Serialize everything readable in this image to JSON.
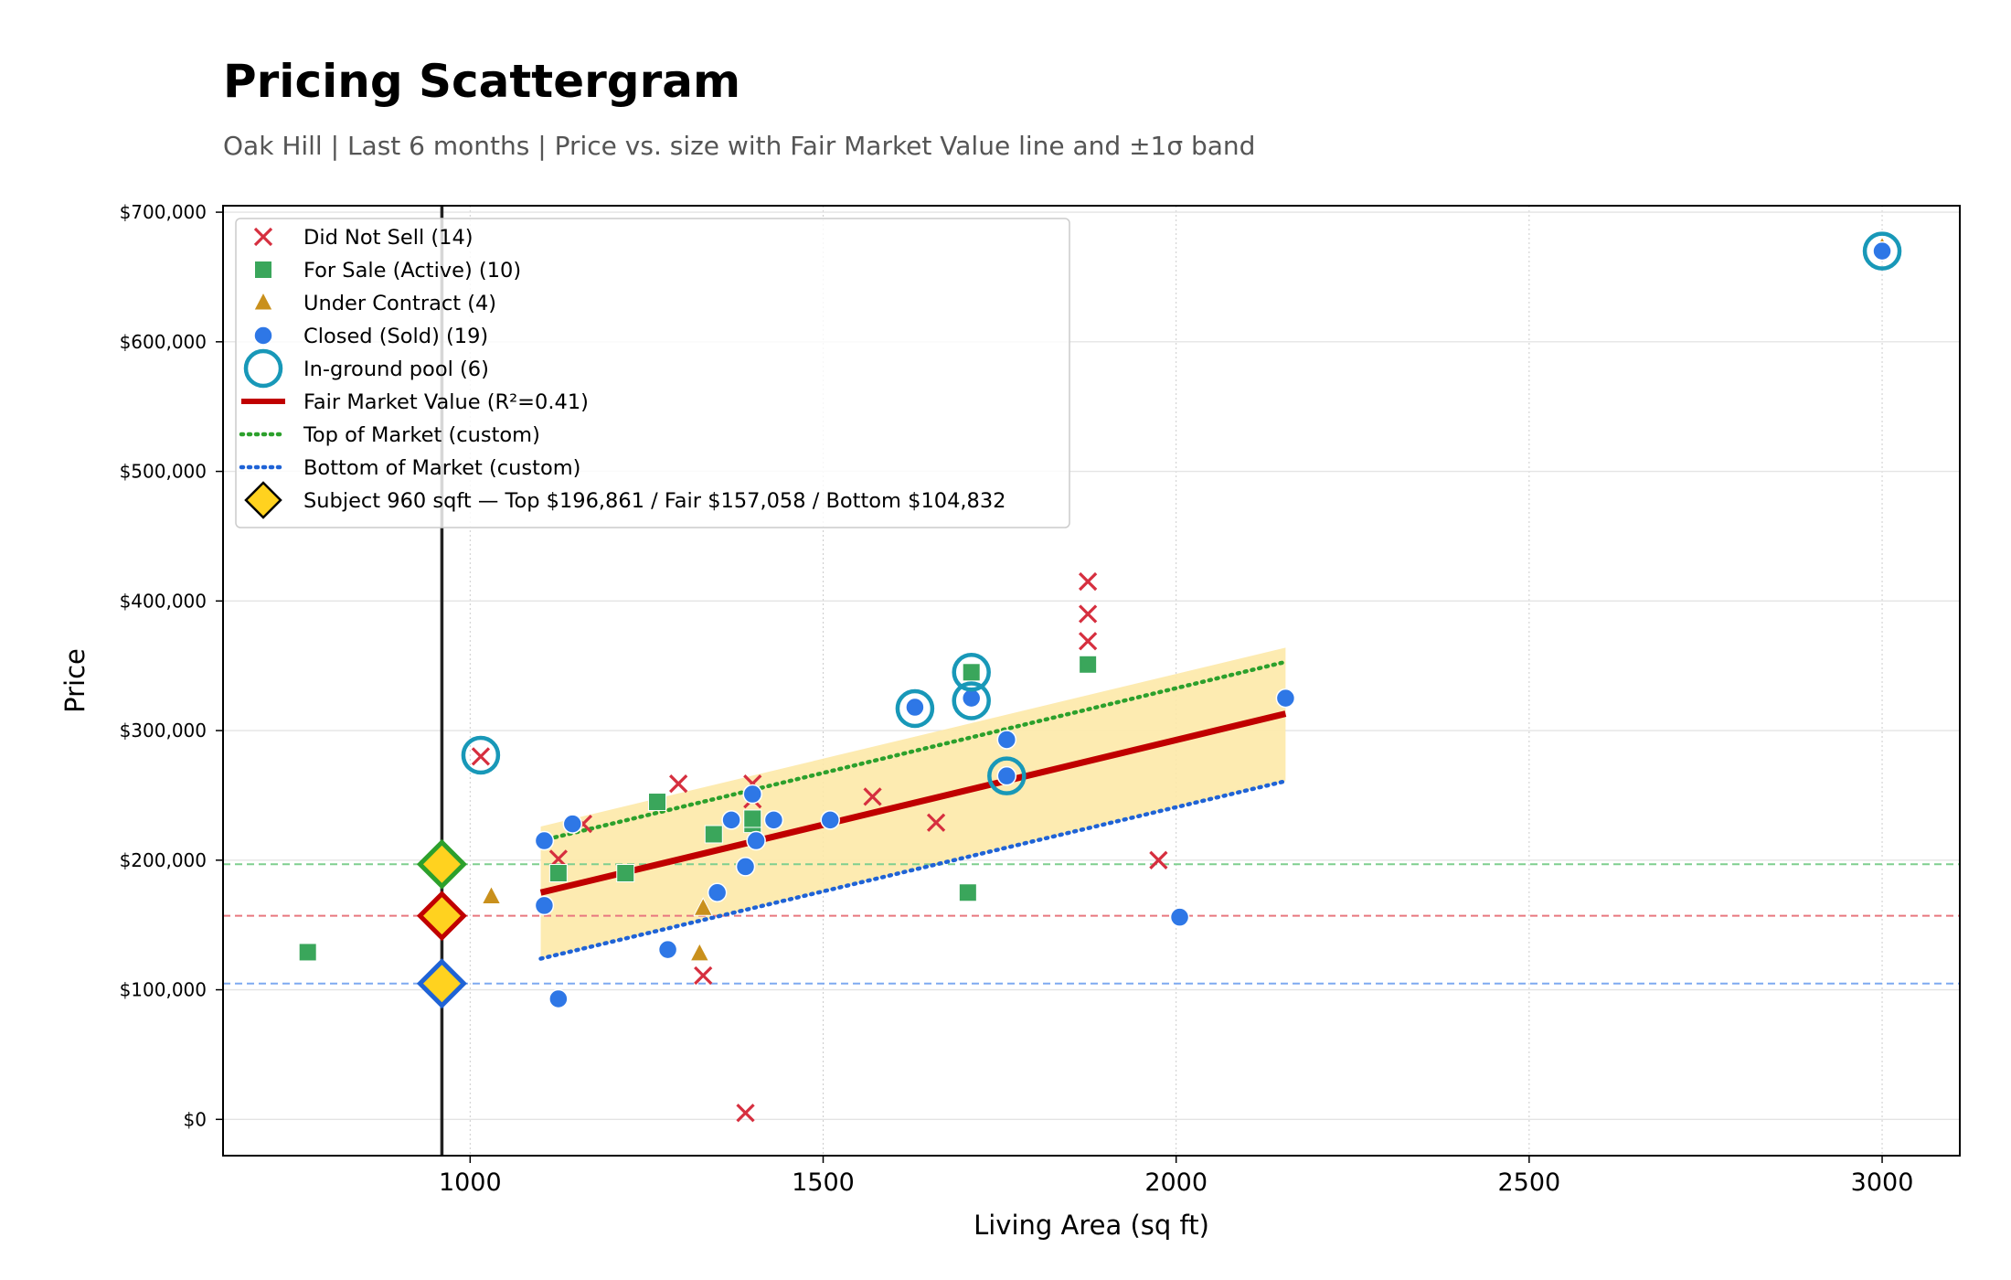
{
  "header": {
    "title": "Pricing Scattergram",
    "subtitle": "Oak Hill  |  Last 6 months  |  Price vs. size with Fair Market Value line and ±1σ band"
  },
  "chart_data": {
    "type": "scatter",
    "title": "Pricing Scattergram",
    "xlabel": "Living Area (sq ft)",
    "ylabel": "Price",
    "xlim": [
      650,
      3110
    ],
    "ylim": [
      -28000,
      705000
    ],
    "x_ticks": [
      1000,
      1500,
      2000,
      2500,
      3000
    ],
    "x_tick_labels": [
      "1000",
      "1500",
      "2000",
      "2500",
      "3000"
    ],
    "y_ticks": [
      0,
      100000,
      200000,
      300000,
      400000,
      500000,
      600000,
      700000
    ],
    "y_tick_labels": [
      "$0",
      "$100,000",
      "$200,000",
      "$300,000",
      "$400,000",
      "$500,000",
      "$600,000",
      "$700,000"
    ],
    "grid": true,
    "legend_position": "upper-left",
    "series": [
      {
        "name": "Did Not Sell (14)",
        "marker": "x",
        "color": "#d62f3f",
        "points": [
          [
            1015,
            280000
          ],
          [
            1125,
            201000
          ],
          [
            1160,
            228000
          ],
          [
            1295,
            259000
          ],
          [
            1330,
            111000
          ],
          [
            1390,
            5000
          ],
          [
            1400,
            259000
          ],
          [
            1400,
            247000
          ],
          [
            1570,
            249000
          ],
          [
            1660,
            229000
          ],
          [
            1875,
            415000
          ],
          [
            1875,
            390000
          ],
          [
            1875,
            369000
          ],
          [
            1975,
            200000
          ]
        ]
      },
      {
        "name": "For Sale (Active) (10)",
        "marker": "square",
        "color": "#3aa65b",
        "points": [
          [
            770,
            129000
          ],
          [
            1125,
            190000
          ],
          [
            1220,
            190000
          ],
          [
            1265,
            245000
          ],
          [
            1345,
            220000
          ],
          [
            1400,
            228000
          ],
          [
            1400,
            232000
          ],
          [
            1705,
            175000
          ],
          [
            1710,
            345000
          ],
          [
            1875,
            351000
          ]
        ]
      },
      {
        "name": "Under Contract (4)",
        "marker": "triangle",
        "color": "#c9901c",
        "points": [
          [
            1030,
            172000
          ],
          [
            1325,
            128000
          ],
          [
            1330,
            163000
          ],
          [
            3000,
            673000
          ]
        ]
      },
      {
        "name": "Closed (Sold) (19)",
        "marker": "circle",
        "color": "#2e77e6",
        "points": [
          [
            1105,
            215000
          ],
          [
            1105,
            165000
          ],
          [
            1125,
            93000
          ],
          [
            1145,
            228000
          ],
          [
            1280,
            131000
          ],
          [
            1350,
            175000
          ],
          [
            1370,
            231000
          ],
          [
            1390,
            195000
          ],
          [
            1400,
            251000
          ],
          [
            1405,
            215000
          ],
          [
            1430,
            231000
          ],
          [
            1510,
            231000
          ],
          [
            1630,
            318000
          ],
          [
            1710,
            325000
          ],
          [
            1760,
            293000
          ],
          [
            1760,
            265000
          ],
          [
            2005,
            156000
          ],
          [
            2155,
            325000
          ],
          [
            3000,
            670000
          ]
        ]
      },
      {
        "name": "In-ground pool (6)",
        "marker": "ring",
        "color": "#1898b8",
        "points": [
          [
            1015,
            281000
          ],
          [
            1630,
            317000
          ],
          [
            1710,
            345000
          ],
          [
            1710,
            323000
          ],
          [
            1760,
            265000
          ],
          [
            3000,
            670000
          ]
        ]
      }
    ],
    "lines": [
      {
        "name": "Fair Market Value (R²=0.41)",
        "style": "solid",
        "color": "#c00000",
        "x": [
          1100,
          2155
        ],
        "y": [
          175000,
          313000
        ]
      },
      {
        "name": "Top of Market (custom)",
        "style": "dotted",
        "color": "#2ca02c",
        "x": [
          1100,
          2155
        ],
        "y": [
          215000,
          353000
        ]
      },
      {
        "name": "Bottom of Market (custom)",
        "style": "dotted",
        "color": "#1f63d6",
        "x": [
          1100,
          2155
        ],
        "y": [
          124000,
          261000
        ]
      }
    ],
    "band": {
      "color": "#fde9a8",
      "x": [
        1100,
        2155
      ],
      "upper": [
        226000,
        364000
      ],
      "lower": [
        124000,
        261000
      ]
    },
    "subject": {
      "name": "Subject 960 sqft  —  Top $196,861 / Fair $157,058 / Bottom $104,832",
      "sqft": 960,
      "top": 196861,
      "fair": 157058,
      "bottom": 104832,
      "fill_color": "#ffd21f",
      "top_color": "#2ca02c",
      "fair_color": "#c00000",
      "bottom_color": "#1f63d6"
    },
    "reference_lines": [
      {
        "y": 196861,
        "color": "#7fcf8f"
      },
      {
        "y": 157058,
        "color": "#e8777f"
      },
      {
        "y": 104832,
        "color": "#7eaaf0"
      }
    ]
  }
}
